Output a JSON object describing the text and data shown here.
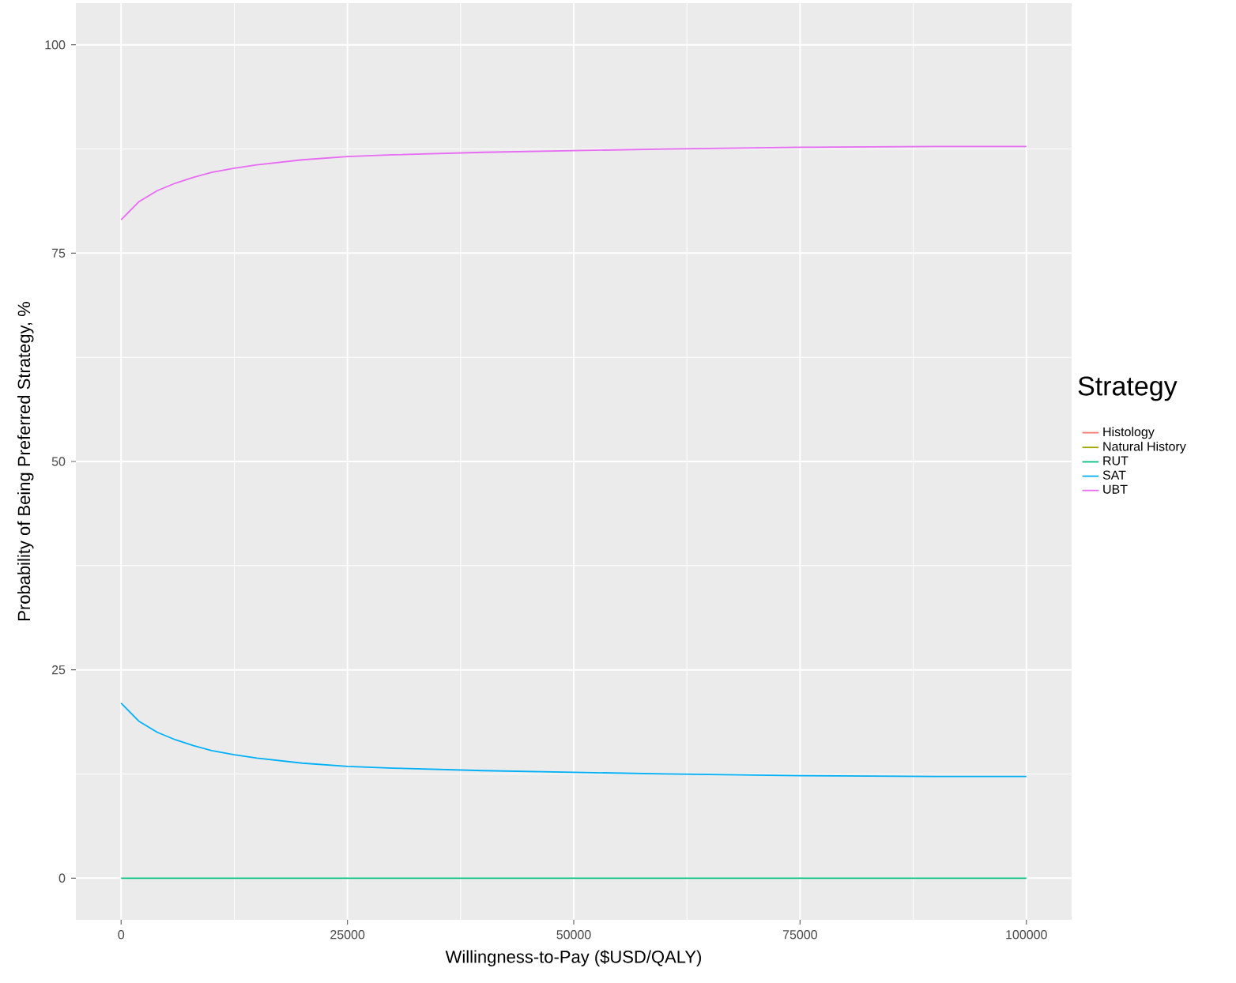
{
  "chart_data": {
    "type": "line",
    "xlabel": "Willingness-to-Pay ($USD/QALY)",
    "ylabel": "Probability of Being Preferred Strategy, %",
    "legend_title": "Strategy",
    "x": [
      0,
      2000,
      4000,
      6000,
      8000,
      10000,
      12500,
      15000,
      20000,
      25000,
      30000,
      40000,
      50000,
      60000,
      75000,
      90000,
      100000
    ],
    "series": [
      {
        "name": "Histology",
        "color": "#f8766d",
        "values": [
          null,
          null,
          null,
          null,
          null,
          null,
          null,
          null,
          null,
          null,
          null,
          null,
          null,
          null,
          null,
          null,
          null
        ]
      },
      {
        "name": "Natural History",
        "color": "#a3a500",
        "values": [
          null,
          null,
          null,
          null,
          null,
          null,
          null,
          null,
          null,
          null,
          null,
          null,
          null,
          null,
          null,
          null,
          null
        ]
      },
      {
        "name": "RUT",
        "color": "#00bf7d",
        "values": [
          0,
          0,
          0,
          0,
          0,
          0,
          0,
          0,
          0,
          0,
          0,
          0,
          0,
          0,
          0,
          0,
          0
        ]
      },
      {
        "name": "SAT",
        "color": "#00b0f6",
        "values": [
          21.0,
          18.8,
          17.5,
          16.6,
          15.9,
          15.3,
          14.8,
          14.4,
          13.8,
          13.4,
          13.2,
          12.9,
          12.7,
          12.5,
          12.3,
          12.2,
          12.2
        ]
      },
      {
        "name": "UBT",
        "color": "#e76bf3",
        "values": [
          79.0,
          81.2,
          82.5,
          83.4,
          84.1,
          84.7,
          85.2,
          85.6,
          86.2,
          86.6,
          86.8,
          87.1,
          87.3,
          87.5,
          87.7,
          87.8,
          87.8
        ]
      }
    ],
    "xlim": [
      -5000,
      105000
    ],
    "xticks": [
      0,
      25000,
      50000,
      75000,
      100000
    ],
    "ylim": [
      -5,
      105
    ],
    "yticks": [
      0,
      25,
      50,
      75,
      100
    ],
    "grid": true,
    "legend": "right",
    "marker": "none",
    "line_style": "solid"
  }
}
